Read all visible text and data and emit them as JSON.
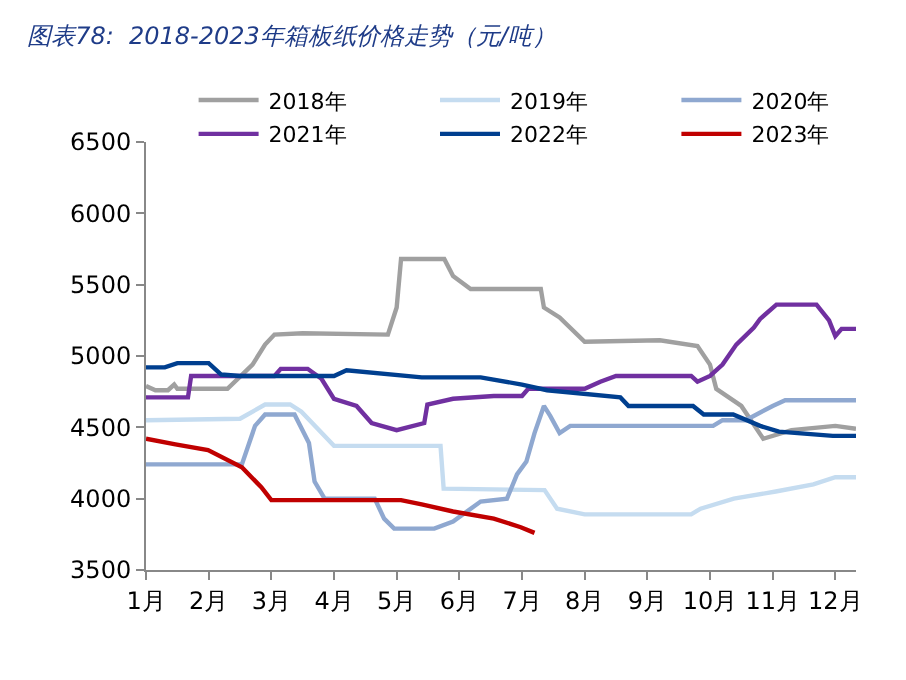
{
  "chart_data": {
    "type": "line",
    "title": "图表78:  2018-2023年箱板纸价格走势（元/吨）",
    "xlim": [
      1,
      12.33
    ],
    "xticks": [
      {
        "value": 1,
        "label": "1月"
      },
      {
        "value": 2,
        "label": "2月"
      },
      {
        "value": 3,
        "label": "3月"
      },
      {
        "value": 4,
        "label": "4月"
      },
      {
        "value": 5,
        "label": "5月"
      },
      {
        "value": 6,
        "label": "6月"
      },
      {
        "value": 7,
        "label": "7月"
      },
      {
        "value": 8,
        "label": "8月"
      },
      {
        "value": 9,
        "label": "9月"
      },
      {
        "value": 10,
        "label": "10月"
      },
      {
        "value": 11,
        "label": "11月"
      },
      {
        "value": 12,
        "label": "12月"
      }
    ],
    "ylim": [
      3500,
      6500
    ],
    "yticks": [
      3500,
      4000,
      4500,
      5000,
      5500,
      6000,
      6500
    ],
    "grid": false,
    "legend": "top",
    "marker": "none",
    "line_style": "solid",
    "series": [
      {
        "name": "2018年",
        "color": "#a0a0a0",
        "x": [
          1.0,
          1.15,
          1.35,
          1.45,
          1.5,
          2.3,
          2.7,
          2.9,
          3.05,
          3.5,
          4.86,
          5.0,
          5.07,
          5.76,
          5.9,
          6.18,
          7.3,
          7.35,
          7.6,
          8.0,
          9.2,
          9.8,
          10.0,
          10.1,
          10.5,
          10.85,
          11.3,
          12.0,
          12.33
        ],
        "values": [
          4790,
          4760,
          4760,
          4800,
          4770,
          4770,
          4940,
          5080,
          5150,
          5160,
          5150,
          5340,
          5680,
          5680,
          5560,
          5470,
          5470,
          5340,
          5270,
          5100,
          5110,
          5070,
          4940,
          4770,
          4650,
          4420,
          4480,
          4510,
          4490
        ]
      },
      {
        "name": "2019年",
        "color": "#c5dcf0",
        "x": [
          1.0,
          2.5,
          2.9,
          3.3,
          3.48,
          4.0,
          5.7,
          5.75,
          7.36,
          7.56,
          8.0,
          9.7,
          9.85,
          10.38,
          11.05,
          11.65,
          12.0,
          12.33
        ],
        "values": [
          4550,
          4560,
          4660,
          4660,
          4610,
          4370,
          4370,
          4070,
          4060,
          3930,
          3890,
          3890,
          3930,
          4000,
          4050,
          4100,
          4150,
          4150
        ]
      },
      {
        "name": "2020年",
        "color": "#8fa8d0",
        "x": [
          1.0,
          2.53,
          2.74,
          2.9,
          3.37,
          3.6,
          3.69,
          3.85,
          4.65,
          4.8,
          4.96,
          5.6,
          5.9,
          6.34,
          6.76,
          6.92,
          7.07,
          7.2,
          7.35,
          7.45,
          7.6,
          7.77,
          10.05,
          10.2,
          10.57,
          11.0,
          11.2,
          12.33
        ],
        "values": [
          4240,
          4240,
          4510,
          4590,
          4590,
          4390,
          4120,
          4000,
          4000,
          3860,
          3790,
          3790,
          3840,
          3980,
          4000,
          4170,
          4260,
          4460,
          4650,
          4580,
          4460,
          4510,
          4510,
          4550,
          4550,
          4650,
          4690,
          4690
        ]
      },
      {
        "name": "2021年",
        "color": "#7030a0",
        "x": [
          1.0,
          1.67,
          1.72,
          3.05,
          3.15,
          3.58,
          3.8,
          4.0,
          4.36,
          4.6,
          5.0,
          5.44,
          5.49,
          5.9,
          6.55,
          7.0,
          7.1,
          8.0,
          8.25,
          8.5,
          9.7,
          9.8,
          10.0,
          10.2,
          10.42,
          10.7,
          10.8,
          11.06,
          11.7,
          11.9,
          12.0,
          12.1,
          12.33
        ],
        "values": [
          4710,
          4710,
          4860,
          4860,
          4910,
          4910,
          4840,
          4700,
          4650,
          4530,
          4480,
          4530,
          4660,
          4700,
          4720,
          4720,
          4770,
          4770,
          4820,
          4860,
          4860,
          4820,
          4860,
          4940,
          5080,
          5200,
          5260,
          5360,
          5360,
          5250,
          5140,
          5190,
          5190
        ]
      },
      {
        "name": "2022年",
        "color": "#003f8f",
        "x": [
          1.0,
          1.3,
          1.5,
          2.0,
          2.2,
          2.5,
          4.0,
          4.2,
          5.4,
          6.34,
          7.0,
          7.4,
          8.57,
          8.7,
          9.73,
          9.9,
          10.37,
          10.8,
          11.1,
          11.96,
          12.33
        ],
        "values": [
          4920,
          4920,
          4950,
          4950,
          4870,
          4860,
          4860,
          4900,
          4850,
          4850,
          4800,
          4760,
          4710,
          4650,
          4650,
          4590,
          4590,
          4510,
          4470,
          4440,
          4440
        ]
      },
      {
        "name": "2023年",
        "color": "#c00000",
        "x": [
          1.0,
          1.47,
          1.99,
          2.53,
          2.84,
          3.0,
          5.07,
          5.4,
          5.9,
          6.55,
          6.98,
          7.2
        ],
        "values": [
          4420,
          4380,
          4340,
          4220,
          4080,
          3990,
          3990,
          3960,
          3910,
          3860,
          3800,
          3760
        ]
      }
    ]
  }
}
